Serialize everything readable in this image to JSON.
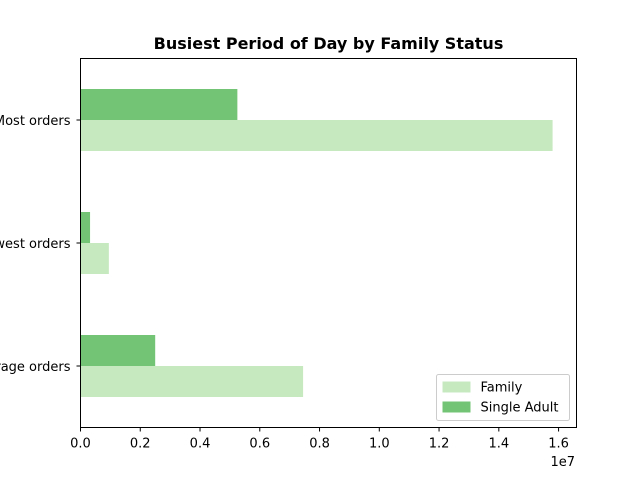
{
  "chart_data": {
    "type": "bar",
    "orientation": "horizontal",
    "title": "Busiest Period of Day by Family Status",
    "categories": [
      "Most orders",
      "Fewest orders",
      "Average orders"
    ],
    "series": [
      {
        "name": "Family",
        "color": "#c7e9c0",
        "values": [
          15800000,
          950000,
          7450000
        ]
      },
      {
        "name": "Single Adult",
        "color": "#74c476",
        "values": [
          5250000,
          320000,
          2500000
        ]
      }
    ],
    "x_ticks": [
      "0.0",
      "0.2",
      "0.4",
      "0.6",
      "0.8",
      "1.0",
      "1.2",
      "1.4",
      "1.6"
    ],
    "x_tick_values": [
      0,
      0.2,
      0.4,
      0.6,
      0.8,
      1.0,
      1.2,
      1.4,
      1.6
    ],
    "x_multiplier_label": "1e7",
    "xlim": [
      0,
      16600000
    ],
    "legend_position": "lower-right",
    "grid": false
  }
}
